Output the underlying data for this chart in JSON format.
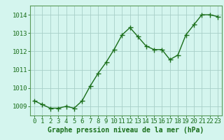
{
  "x": [
    0,
    1,
    2,
    3,
    4,
    5,
    6,
    7,
    8,
    9,
    10,
    11,
    12,
    13,
    14,
    15,
    16,
    17,
    18,
    19,
    20,
    21,
    22,
    23
  ],
  "y": [
    1009.3,
    1009.1,
    1008.9,
    1008.9,
    1009.0,
    1008.9,
    1009.3,
    1010.1,
    1010.8,
    1011.4,
    1012.1,
    1012.9,
    1013.3,
    1012.8,
    1012.3,
    1012.1,
    1012.1,
    1011.55,
    1011.8,
    1012.9,
    1013.45,
    1014.0,
    1014.0,
    1013.9
  ],
  "ylim": [
    1008.5,
    1014.5
  ],
  "yticks": [
    1009,
    1010,
    1011,
    1012,
    1013,
    1014
  ],
  "xticks": [
    0,
    1,
    2,
    3,
    4,
    5,
    6,
    7,
    8,
    9,
    10,
    11,
    12,
    13,
    14,
    15,
    16,
    17,
    18,
    19,
    20,
    21,
    22,
    23
  ],
  "line_color": "#1a6e1a",
  "marker_color": "#1a6e1a",
  "bg_color": "#d4f5ee",
  "grid_color": "#a8cfc8",
  "xlabel": "Graphe pression niveau de la mer (hPa)",
  "xlabel_color": "#1a6e1a",
  "xlabel_fontsize": 7.0,
  "tick_fontsize": 6.5,
  "tick_color": "#1a6e1a",
  "spine_color": "#5a9a5a",
  "marker_size": 2.8,
  "line_width": 1.0
}
